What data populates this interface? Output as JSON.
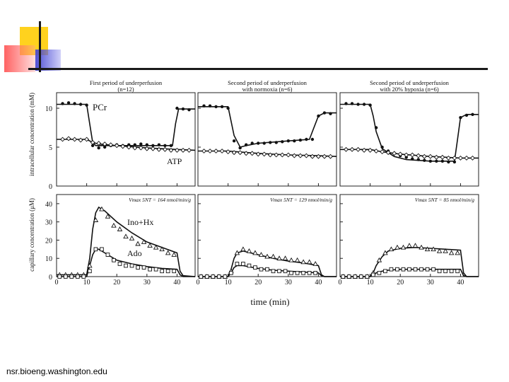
{
  "footer": "nsr.bioeng.washington.edu",
  "chart_data": {
    "type": "line",
    "xlabel": "time (min)",
    "x_ticks": [
      0,
      10,
      20,
      30,
      40
    ],
    "top_ylabel": "intracellular concentration (mM)",
    "top_yticks": [
      0,
      5,
      10
    ],
    "top_ylim": [
      0,
      12
    ],
    "bottom_ylabel": "capillary concentration (μM)",
    "bottom_yticks": [
      0,
      10,
      20,
      30,
      40
    ],
    "bottom_ylim": [
      0,
      45
    ],
    "xlim": [
      0,
      46
    ],
    "panel_labels": {
      "pcr": "PCr",
      "atp": "ATP",
      "ino_hx": "Ino+Hx",
      "ado": "Ado"
    },
    "panels": [
      {
        "title_lines": [
          "First period of underperfusion",
          "(n=12)"
        ],
        "vmax": "Vmax 5NT = 164 nmol/min/g",
        "top": [
          {
            "name": "PCr",
            "marker": "dot",
            "x": [
              2,
              4,
              6,
              8,
              10,
              12,
              14,
              16,
              18,
              20,
              22,
              24,
              26,
              28,
              30,
              32,
              34,
              36,
              38,
              40,
              42,
              44
            ],
            "y": [
              10.6,
              10.7,
              10.6,
              10.5,
              10.4,
              5.2,
              4.9,
              5.0,
              5.2,
              5.3,
              5.2,
              5.3,
              5.3,
              5.4,
              5.3,
              5.2,
              5.3,
              5.2,
              5.2,
              10.0,
              9.9,
              9.8
            ]
          },
          {
            "name": "ATP",
            "marker": "diamond",
            "x": [
              2,
              4,
              6,
              8,
              10,
              12,
              14,
              16,
              18,
              20,
              22,
              24,
              26,
              28,
              30,
              32,
              34,
              36,
              38,
              40,
              42,
              44
            ],
            "y": [
              6.0,
              6.1,
              6.0,
              5.9,
              6.0,
              5.6,
              5.5,
              5.4,
              5.3,
              5.2,
              5.1,
              5.0,
              4.9,
              4.9,
              4.8,
              4.8,
              4.7,
              4.7,
              4.6,
              4.6,
              4.6,
              4.6
            ]
          }
        ],
        "top_model": [
          {
            "name": "PCr",
            "x": [
              0,
              10,
              11,
              12,
              13,
              20,
              30,
              38.5,
              39.5,
              40.5,
              46
            ],
            "y": [
              10.5,
              10.5,
              8,
              5.6,
              5.2,
              5.2,
              5.2,
              5.2,
              8,
              9.9,
              9.9
            ]
          },
          {
            "name": "ATP",
            "x": [
              0,
              10,
              12,
              14,
              20,
              30,
              40,
              46
            ],
            "y": [
              6.0,
              6.0,
              5.6,
              5.4,
              5.2,
              4.9,
              4.7,
              4.6
            ]
          }
        ],
        "bottom": [
          {
            "name": "Ino+Hx",
            "marker": "triangle",
            "x": [
              1,
              3,
              5,
              7,
              9,
              11,
              13,
              15,
              17,
              19,
              21,
              23,
              25,
              27,
              29,
              31,
              33,
              35,
              37,
              39
            ],
            "y": [
              1,
              1,
              1,
              1,
              1,
              6,
              31,
              37,
              33,
              28,
              26,
              22,
              21,
              18,
              19,
              17,
              16,
              15,
              13,
              12
            ]
          },
          {
            "name": "Ado",
            "marker": "square",
            "x": [
              1,
              3,
              5,
              7,
              9,
              11,
              13,
              15,
              17,
              19,
              21,
              23,
              25,
              27,
              29,
              31,
              33,
              35,
              37,
              39
            ],
            "y": [
              0,
              0,
              0,
              0,
              0,
              3,
              15,
              15,
              12,
              9,
              7,
              6,
              6,
              5,
              5,
              4,
              4,
              3,
              3,
              3
            ]
          }
        ],
        "bottom_model": [
          {
            "name": "Ino+Hx",
            "x": [
              0,
              10,
              11,
              12,
              13,
              14,
              16,
              20,
              25,
              30,
              35,
              40,
              41,
              42,
              46
            ],
            "y": [
              1,
              1,
              10,
              26,
              35,
              38,
              36,
              30,
              24,
              19,
              16,
              13,
              3,
              0.5,
              0
            ]
          },
          {
            "name": "Ado",
            "x": [
              0,
              10,
              11,
              12,
              13,
              14,
              16,
              20,
              25,
              30,
              35,
              40,
              41,
              42,
              46
            ],
            "y": [
              0,
              0,
              6,
              12,
              15,
              15,
              13,
              9,
              7,
              5.5,
              4.5,
              4,
              1,
              0,
              0
            ]
          }
        ]
      },
      {
        "title_lines": [
          "Second period of underperfusion",
          "with normoxia (n=6)"
        ],
        "vmax": "Vmax 5NT = 129 nmol/min/g",
        "top": [
          {
            "name": "PCr",
            "marker": "dot",
            "x": [
              2,
              4,
              6,
              8,
              10,
              12,
              14,
              16,
              18,
              20,
              22,
              24,
              26,
              28,
              30,
              32,
              34,
              36,
              38,
              40,
              42,
              44
            ],
            "y": [
              10.3,
              10.3,
              10.2,
              10.2,
              10.0,
              5.8,
              4.9,
              5.3,
              5.5,
              5.5,
              5.5,
              5.6,
              5.6,
              5.7,
              5.8,
              5.8,
              5.9,
              6.0,
              6.0,
              9.0,
              9.4,
              9.3
            ]
          },
          {
            "name": "ATP",
            "marker": "diamond",
            "x": [
              2,
              4,
              6,
              8,
              10,
              12,
              14,
              16,
              18,
              20,
              22,
              24,
              26,
              28,
              30,
              32,
              34,
              36,
              38,
              40,
              42,
              44
            ],
            "y": [
              4.5,
              4.5,
              4.5,
              4.5,
              4.4,
              4.3,
              4.3,
              4.2,
              4.2,
              4.1,
              4.1,
              4.0,
              4.0,
              4.0,
              4.0,
              3.9,
              3.9,
              3.9,
              3.8,
              3.8,
              3.8,
              3.8
            ]
          }
        ],
        "top_model": [
          {
            "name": "PCr",
            "x": [
              0,
              10,
              12,
              14,
              16,
              20,
              30,
              37,
              38,
              40,
              42,
              46
            ],
            "y": [
              10.2,
              10.2,
              6.5,
              5.0,
              5.2,
              5.5,
              5.8,
              6.0,
              7,
              9.0,
              9.4,
              9.4
            ]
          },
          {
            "name": "ATP",
            "x": [
              0,
              10,
              20,
              30,
              40,
              46
            ],
            "y": [
              4.5,
              4.5,
              4.2,
              4.0,
              3.9,
              3.8
            ]
          }
        ],
        "bottom": [
          {
            "name": "Ino+Hx",
            "marker": "triangle",
            "x": [
              1,
              3,
              5,
              7,
              9,
              11,
              13,
              15,
              17,
              19,
              21,
              23,
              25,
              27,
              29,
              31,
              33,
              35,
              37,
              39
            ],
            "y": [
              0,
              0,
              0,
              0,
              0,
              3,
              13,
              15,
              14,
              13,
              12,
              11,
              11,
              10,
              10,
              9,
              9,
              8,
              8,
              7
            ]
          },
          {
            "name": "Ado",
            "marker": "square",
            "x": [
              1,
              3,
              5,
              7,
              9,
              11,
              13,
              15,
              17,
              19,
              21,
              23,
              25,
              27,
              29,
              31,
              33,
              35,
              37,
              39
            ],
            "y": [
              0,
              0,
              0,
              0,
              0,
              2,
              7,
              7,
              6,
              5,
              4,
              4,
              3,
              3,
              3,
              2,
              2,
              2,
              2,
              2
            ]
          }
        ],
        "bottom_model": [
          {
            "name": "Ino+Hx",
            "x": [
              0,
              10,
              11,
              12,
              13,
              15,
              20,
              25,
              30,
              35,
              40,
              41,
              42,
              46
            ],
            "y": [
              0,
              0,
              4,
              10,
              13,
              14,
              12,
              10,
              8.5,
              7.5,
              6,
              1,
              0,
              0
            ]
          },
          {
            "name": "Ado",
            "x": [
              0,
              10,
              11,
              12,
              13,
              15,
              20,
              25,
              30,
              35,
              40,
              41,
              42,
              46
            ],
            "y": [
              0,
              0,
              2,
              5,
              6,
              6,
              4.5,
              3.5,
              3,
              2.5,
              2,
              0.5,
              0,
              0
            ]
          }
        ]
      },
      {
        "title_lines": [
          "Second period of underperfusion",
          "with 20% hypoxia (n=6)"
        ],
        "vmax": "Vmax 5NT = 85 nmol/min/g",
        "top": [
          {
            "name": "PCr",
            "marker": "dot",
            "x": [
              2,
              4,
              6,
              8,
              10,
              12,
              14,
              16,
              18,
              20,
              22,
              24,
              26,
              28,
              30,
              32,
              34,
              36,
              38,
              40,
              42,
              44
            ],
            "y": [
              10.6,
              10.6,
              10.5,
              10.5,
              10.4,
              7.5,
              5.0,
              4.5,
              4.2,
              3.9,
              3.7,
              3.5,
              3.4,
              3.3,
              3.2,
              3.2,
              3.2,
              3.1,
              3.1,
              8.8,
              9.1,
              9.2
            ]
          },
          {
            "name": "ATP",
            "marker": "diamond",
            "x": [
              2,
              4,
              6,
              8,
              10,
              12,
              14,
              16,
              18,
              20,
              22,
              24,
              26,
              28,
              30,
              32,
              34,
              36,
              38,
              40,
              42,
              44
            ],
            "y": [
              4.7,
              4.7,
              4.7,
              4.6,
              4.6,
              4.5,
              4.4,
              4.3,
              4.2,
              4.1,
              4.0,
              4.0,
              3.9,
              3.8,
              3.8,
              3.7,
              3.7,
              3.6,
              3.6,
              3.6,
              3.6,
              3.6
            ]
          }
        ],
        "top_model": [
          {
            "name": "PCr",
            "x": [
              0,
              10,
              11,
              12,
              14,
              18,
              22,
              30,
              38,
              39,
              40,
              42,
              46
            ],
            "y": [
              10.5,
              10.5,
              9,
              7,
              4.8,
              3.8,
              3.4,
              3.2,
              3.2,
              6,
              8.8,
              9.2,
              9.2
            ]
          },
          {
            "name": "ATP",
            "x": [
              0,
              10,
              14,
              20,
              30,
              40,
              46
            ],
            "y": [
              4.7,
              4.7,
              4.4,
              4.1,
              3.8,
              3.6,
              3.6
            ]
          }
        ],
        "bottom": [
          {
            "name": "Ino+Hx",
            "marker": "triangle",
            "x": [
              1,
              3,
              5,
              7,
              9,
              11,
              13,
              15,
              17,
              19,
              21,
              23,
              25,
              27,
              29,
              31,
              33,
              35,
              37,
              39
            ],
            "y": [
              0,
              0,
              0,
              0,
              0,
              2,
              9,
              13,
              15,
              16,
              16,
              17,
              17,
              16,
              15,
              15,
              14,
              14,
              13,
              13
            ]
          },
          {
            "name": "Ado",
            "marker": "square",
            "x": [
              1,
              3,
              5,
              7,
              9,
              11,
              13,
              15,
              17,
              19,
              21,
              23,
              25,
              27,
              29,
              31,
              33,
              35,
              37,
              39
            ],
            "y": [
              0,
              0,
              0,
              0,
              0,
              1,
              2,
              3,
              4,
              4,
              4,
              4,
              4,
              4,
              4,
              4,
              3,
              3,
              3,
              3
            ]
          }
        ],
        "bottom_model": [
          {
            "name": "Ino+Hx",
            "x": [
              0,
              10,
              11,
              12,
              14,
              16,
              20,
              25,
              30,
              35,
              40,
              41,
              42,
              46
            ],
            "y": [
              0,
              0,
              2,
              6,
              11,
              14,
              15.5,
              16,
              15.5,
              15,
              14.5,
              2,
              0,
              0
            ]
          },
          {
            "name": "Ado",
            "x": [
              0,
              10,
              11,
              12,
              14,
              16,
              20,
              25,
              30,
              35,
              40,
              41,
              42,
              46
            ],
            "y": [
              0,
              0,
              1,
              2,
              3,
              3.5,
              4,
              4,
              4,
              4,
              4,
              0.5,
              0,
              0
            ]
          }
        ]
      }
    ]
  }
}
